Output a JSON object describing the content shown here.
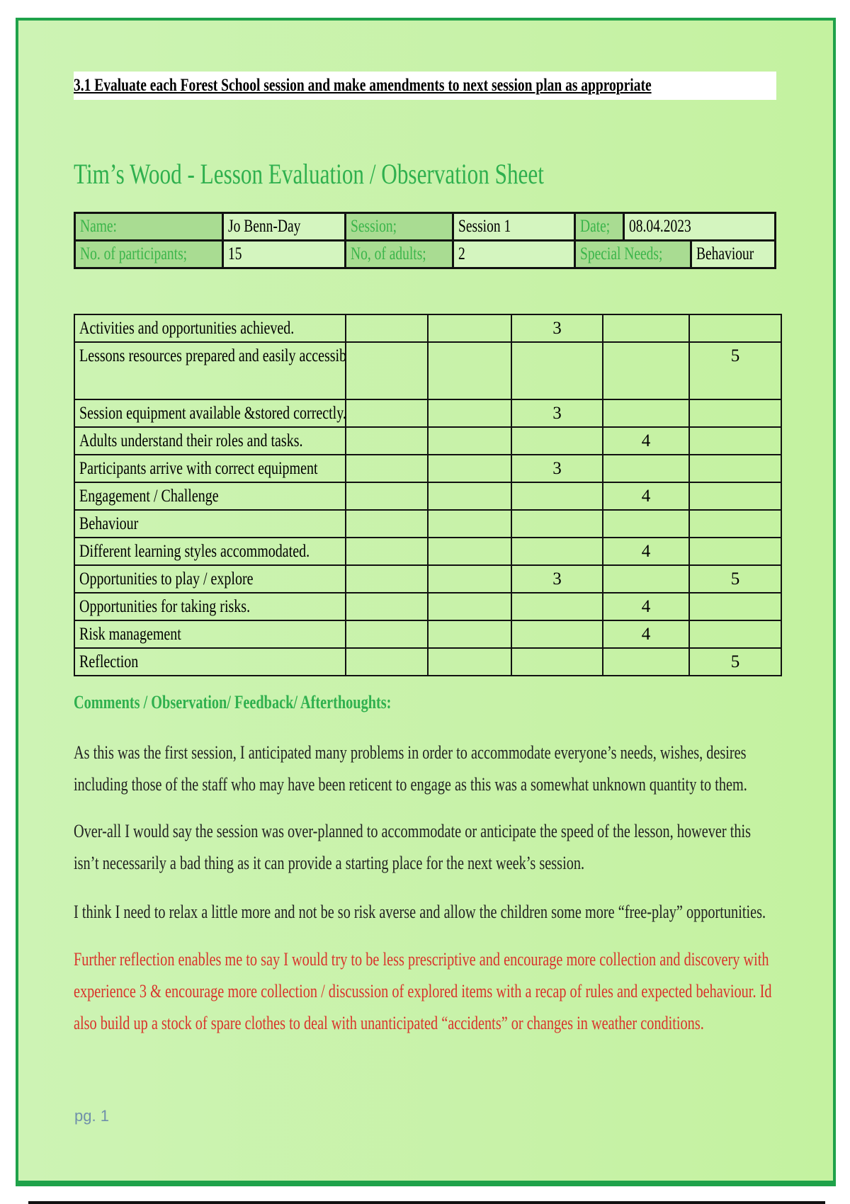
{
  "header": {
    "title": "3.1 Evaluate each Forest School session and make amendments to next session plan as appropriate"
  },
  "sheet_title": "Tim’s Wood - Lesson Evaluation / Observation Sheet",
  "info": {
    "name_label": "Name:",
    "name": "Jo Benn-Day",
    "session_label": "Session;",
    "session": "Session 1",
    "date_label": "Date;",
    "date": "08.04.2023",
    "participants_label": "No. of participants;",
    "participants": "15",
    "adults_label": "No, of adults;",
    "adults": "2",
    "needs_label": "Special Needs;",
    "needs": "Behaviour"
  },
  "evaluation": [
    {
      "item": "Activities and opportunities achieved.",
      "scores": [
        "",
        "",
        "3",
        "",
        ""
      ]
    },
    {
      "item": "Lessons resources prepared and easily accessible.",
      "scores": [
        "",
        "",
        "",
        "",
        "5"
      ]
    },
    {
      "item": "Session equipment available &stored correctly.",
      "scores": [
        "",
        "",
        "3",
        "",
        ""
      ]
    },
    {
      "item": "Adults understand their roles and tasks.",
      "scores": [
        "",
        "",
        "",
        "4",
        ""
      ]
    },
    {
      "item": "Participants arrive with correct equipment",
      "scores": [
        "",
        "",
        "3",
        "",
        ""
      ]
    },
    {
      "item": "Engagement / Challenge",
      "scores": [
        "",
        "",
        "",
        "4",
        ""
      ]
    },
    {
      "item": "Behaviour",
      "scores": [
        "",
        "",
        "",
        "",
        ""
      ]
    },
    {
      "item": "Different learning styles accommodated.",
      "scores": [
        "",
        "",
        "",
        "4",
        ""
      ]
    },
    {
      "item": "Opportunities to play / explore",
      "scores": [
        "",
        "",
        "3",
        "",
        "5"
      ]
    },
    {
      "item": "Opportunities for taking risks.",
      "scores": [
        "",
        "",
        "",
        "4",
        ""
      ]
    },
    {
      "item": "Risk management",
      "scores": [
        "",
        "",
        "",
        "4",
        ""
      ]
    },
    {
      "item": "Reflection",
      "scores": [
        "",
        "",
        "",
        "",
        "5"
      ]
    }
  ],
  "comments": {
    "heading": "Comments / Observation/ Feedback/ Afterthoughts:",
    "paragraphs": [
      "As this was the first session, I anticipated many problems in order to accommodate everyone’s needs, wishes, desires including those of the staff who may have been reticent to engage as this was a somewhat unknown quantity to them.",
      "Over-all I would say the session was over-planned to accommodate or anticipate the speed of the lesson, however this isn’t necessarily a bad thing as it can provide a starting place for the next week’s session.",
      "I think I need to relax a little more and not be so risk averse and allow the children some more “free-play” opportunities."
    ],
    "reflection": "Further reflection enables me to say I would try to be less prescriptive and encourage more collection and discovery with experience 3 & encourage more collection / discussion of explored items with a recap of rules and expected behaviour. Id also build up a stock of spare clothes to deal with unanticipated “accidents” or changes in weather conditions."
  },
  "footer": {
    "page": "pg. 1"
  },
  "colors": {
    "frame": "#1fa24a",
    "heading": "#2fb04e",
    "reflection": "#d9342b"
  }
}
